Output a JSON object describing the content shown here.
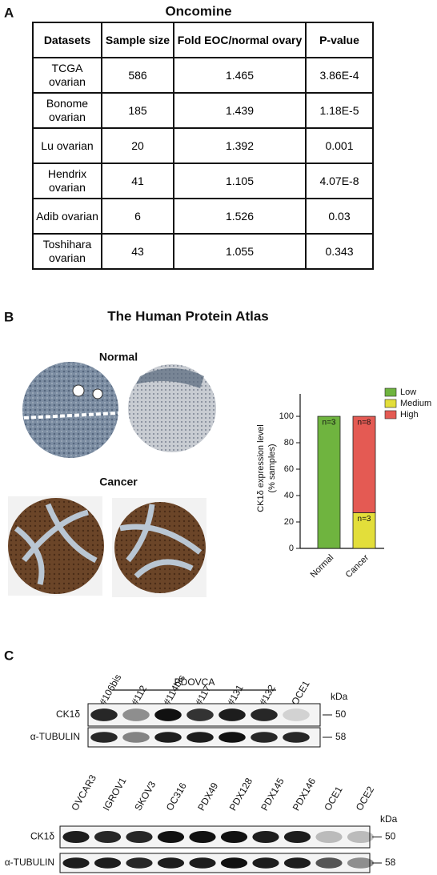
{
  "panel_a": {
    "label": "A",
    "title": "Oncomine",
    "table": {
      "header": [
        "Datasets",
        "Sample size",
        "Fold EOC/normal ovary",
        "P-value"
      ],
      "rows": [
        [
          "TCGA ovarian",
          "586",
          "1.465",
          "3.86E-4"
        ],
        [
          "Bonome ovarian",
          "185",
          "1.439",
          "1.18E-5"
        ],
        [
          "Lu ovarian",
          "20",
          "1.392",
          "0.001"
        ],
        [
          "Hendrix ovarian",
          "41",
          "1.105",
          "4.07E-8"
        ],
        [
          "Adib ovarian",
          "6",
          "1.526",
          "0.03"
        ],
        [
          "Toshihara ovarian",
          "43",
          "1.055",
          "0.343"
        ]
      ]
    }
  },
  "panel_b": {
    "label": "B",
    "title": "The Human Protein Atlas",
    "normal": "Normal",
    "cancer": "Cancer"
  },
  "chart_data": {
    "type": "bar",
    "stacked": true,
    "ylabel": [
      "CK1δ expression level",
      "(% samples)"
    ],
    "categories": [
      "Normal",
      "Cancer"
    ],
    "series": [
      {
        "name": "Low",
        "color": "#6fb43f",
        "values": [
          100,
          0
        ],
        "labels": [
          "n=3",
          null
        ]
      },
      {
        "name": "Medium",
        "color": "#e3de3a",
        "values": [
          0,
          27
        ],
        "labels": [
          null,
          "n=3"
        ]
      },
      {
        "name": "High",
        "color": "#e45a53",
        "values": [
          0,
          73
        ],
        "labels": [
          null,
          "n=8"
        ]
      }
    ],
    "ylim": [
      0,
      117
    ],
    "yticks": [
      0,
      20,
      40,
      60,
      80,
      100
    ],
    "legend": "top-right"
  },
  "panel_c": {
    "label": "C",
    "group": "PDOVCA",
    "kda": "kDa",
    "blot1": {
      "lanes": [
        "#106bis",
        "#112",
        "#114bis",
        "#117",
        "#131",
        "#132",
        "OCE1"
      ],
      "rows": [
        {
          "name": "CK1δ",
          "marker": "50"
        },
        {
          "name": "α-TUBULIN",
          "marker": "58"
        }
      ]
    },
    "blot2": {
      "lanes": [
        "OVCAR3",
        "IGROV1",
        "SKOV3",
        "OC316",
        "PDX49",
        "PDX128",
        "PDX145",
        "PDX146",
        "OCE1",
        "OCE2"
      ],
      "rows": [
        {
          "name": "CK1δ",
          "marker": "50"
        },
        {
          "name": "α-TUBULIN",
          "marker": "58"
        }
      ]
    }
  }
}
